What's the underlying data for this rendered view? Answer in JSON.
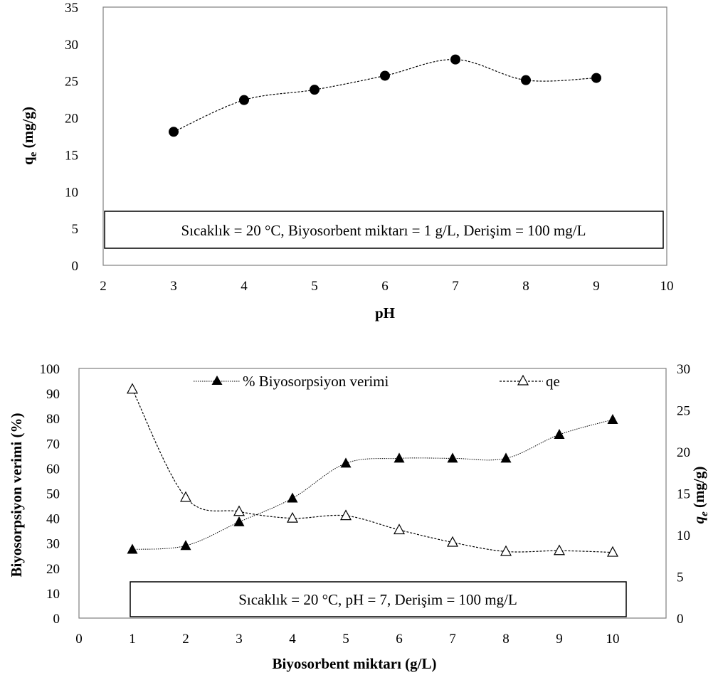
{
  "chart_data": [
    {
      "type": "scatter",
      "xlabel": "pH",
      "ylabel_main": "q",
      "ylabel_sub": "e",
      "ylabel_unit": " (mg/g)",
      "xlim": [
        2,
        10
      ],
      "ylim": [
        0,
        35
      ],
      "x_ticks": [
        "2",
        "3",
        "4",
        "5",
        "6",
        "7",
        "8",
        "9",
        "10"
      ],
      "y_ticks": [
        "0",
        "5",
        "10",
        "15",
        "20",
        "25",
        "30",
        "35"
      ],
      "series": [
        {
          "x": [
            3,
            4,
            5,
            6,
            7,
            8,
            9
          ],
          "values": [
            18.1,
            22.4,
            23.8,
            25.7,
            27.9,
            25.1,
            25.4
          ]
        }
      ],
      "annotation": "Sıcaklık = 20 °C, Biyosorbent miktarı = 1 g/L, Derişim = 100 mg/L"
    },
    {
      "type": "scatter",
      "xlabel": "Biyosorbent miktarı (g/L)",
      "ylabel": "Biyosorpsiyon verimi (%)",
      "y2label_main": "q",
      "y2label_sub": "e",
      "y2label_unit": " (mg/g)",
      "xlim": [
        0,
        11
      ],
      "ylim": [
        0,
        100
      ],
      "y2lim": [
        0,
        30
      ],
      "x_ticks": [
        "0",
        "1",
        "2",
        "3",
        "4",
        "5",
        "6",
        "7",
        "8",
        "9",
        "10"
      ],
      "y_ticks": [
        "0",
        "10",
        "20",
        "30",
        "40",
        "50",
        "60",
        "70",
        "80",
        "90",
        "100"
      ],
      "y2_ticks": [
        "0",
        "5",
        "10",
        "15",
        "20",
        "25",
        "30"
      ],
      "series": [
        {
          "name": "% Biyosorpsiyon verimi",
          "axis": "left",
          "marker": "filled-triangle",
          "x": [
            1,
            2,
            3,
            4,
            5,
            6,
            7,
            8,
            9,
            10
          ],
          "values": [
            27.5,
            29.0,
            38.5,
            48.0,
            62.0,
            64.0,
            64.0,
            64.0,
            73.5,
            79.5
          ]
        },
        {
          "name": "qe",
          "axis": "right",
          "marker": "open-triangle",
          "x": [
            1,
            2,
            3,
            4,
            5,
            6,
            7,
            8,
            9,
            10
          ],
          "values": [
            27.5,
            14.5,
            12.8,
            12.0,
            12.3,
            10.6,
            9.1,
            8.0,
            8.1,
            7.9
          ]
        }
      ],
      "annotation": "Sıcaklık = 20 °C, pH = 7, Derişim = 100 mg/L"
    }
  ]
}
